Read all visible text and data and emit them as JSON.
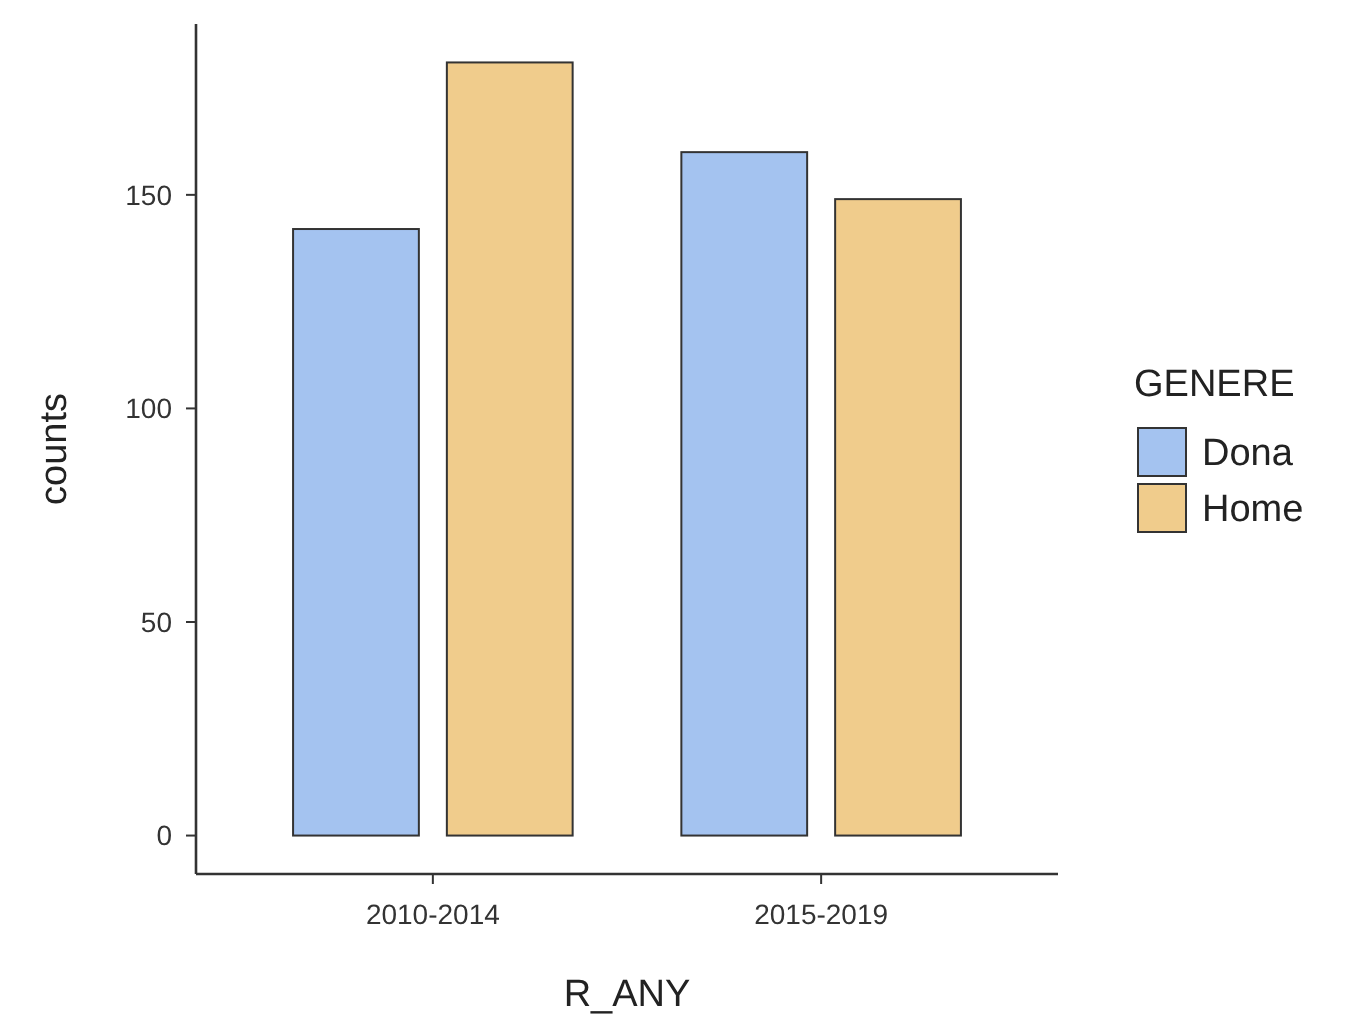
{
  "chart_data": {
    "type": "bar",
    "xlabel": "R_ANY",
    "ylabel": "counts",
    "legend_title": "GENERE",
    "categories": [
      "2010-2014",
      "2015-2019"
    ],
    "series": [
      {
        "name": "Dona",
        "color": "#a4c3f0",
        "values": [
          142,
          160
        ]
      },
      {
        "name": "Home",
        "color": "#f0cc8c",
        "values": [
          181,
          149
        ]
      }
    ],
    "ylim": [
      -9,
      190
    ],
    "yticks": [
      0,
      50,
      100,
      150
    ],
    "legend": "right",
    "grid": false
  }
}
